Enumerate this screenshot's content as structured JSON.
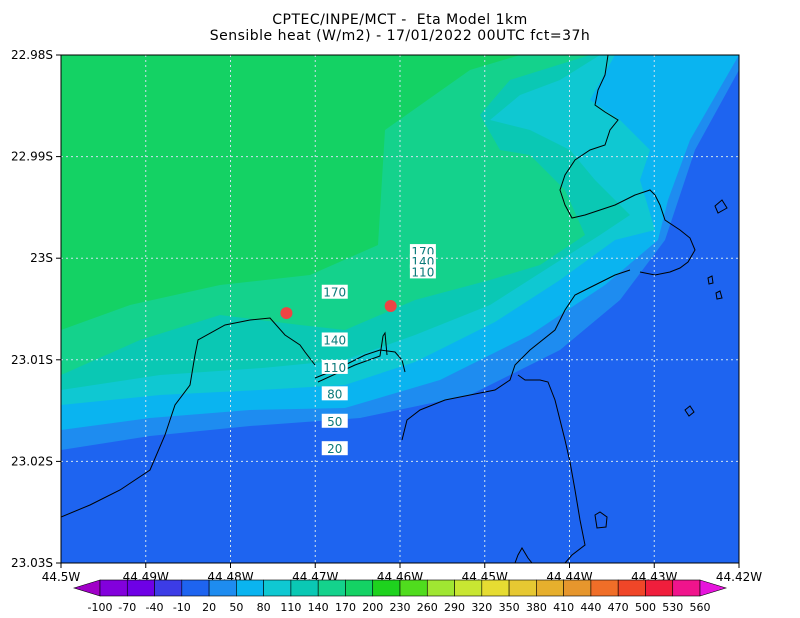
{
  "chart_data": {
    "type": "heatmap",
    "title": "CPTEC/INPE/MCT -  Eta Model 1km",
    "subtitle": "Sensible heat (W/m2) - 17/01/2022 00UTC fct=37h",
    "xlabel": "",
    "ylabel": "",
    "x_ticks": [
      "44.5W",
      "44.49W",
      "44.48W",
      "44.47W",
      "44.46W",
      "44.45W",
      "44.44W",
      "44.43W",
      "44.42W"
    ],
    "y_ticks": [
      "22.98S",
      "22.99S",
      "23S",
      "23.01S",
      "23.02S",
      "23.03S"
    ],
    "xlim": [
      -44.5,
      -44.42
    ],
    "ylim": [
      -23.03,
      -22.98
    ],
    "grid": true,
    "colorbar": {
      "levels": [
        -100,
        -70,
        -40,
        -10,
        20,
        50,
        80,
        110,
        140,
        170,
        200,
        230,
        260,
        290,
        320,
        350,
        380,
        410,
        440,
        470,
        500,
        530,
        560
      ],
      "colors": [
        "#a000c8",
        "#8200dc",
        "#6e00e6",
        "#3c3ce6",
        "#1e64f0",
        "#1e8cf0",
        "#0ab4f0",
        "#0fc8d2",
        "#0ac8b4",
        "#14d28c",
        "#14d264",
        "#1ed21e",
        "#50dc1e",
        "#a0e632",
        "#c8e632",
        "#e6dc32",
        "#e6c832",
        "#e6af2d",
        "#e6962d",
        "#f06e28",
        "#f04628",
        "#f01e3c",
        "#f0148c",
        "#e614dc"
      ]
    },
    "contour_labels": [
      {
        "value": 170,
        "lon": -44.4573,
        "lat": -22.9993
      },
      {
        "value": 140,
        "lon": -44.4573,
        "lat": -23.0003
      },
      {
        "value": 110,
        "lon": -44.4573,
        "lat": -23.0013
      },
      {
        "value": 170,
        "lon": -44.4677,
        "lat": -23.0033
      },
      {
        "value": 140,
        "lon": -44.4677,
        "lat": -23.008
      },
      {
        "value": 110,
        "lon": -44.4677,
        "lat": -23.0107
      },
      {
        "value": 80,
        "lon": -44.4677,
        "lat": -23.0133
      },
      {
        "value": 50,
        "lon": -44.4677,
        "lat": -23.016
      },
      {
        "value": 20,
        "lon": -44.4677,
        "lat": -23.0187
      }
    ],
    "markers": [
      {
        "lon": -44.4734,
        "lat": -23.0054,
        "color": "#ee4444"
      },
      {
        "lon": -44.4611,
        "lat": -23.0047,
        "color": "#ee4444"
      }
    ]
  }
}
